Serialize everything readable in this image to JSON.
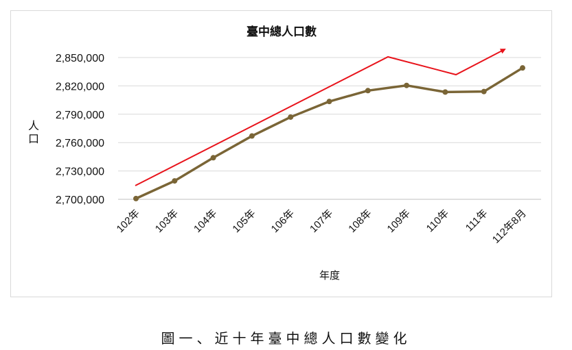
{
  "chart_data": {
    "type": "line",
    "title": "臺中總人口數",
    "xlabel": "年度",
    "ylabel": "人口",
    "categories": [
      "102年",
      "103年",
      "104年",
      "105年",
      "106年",
      "107年",
      "108年",
      "109年",
      "110年",
      "111年",
      "112年8月"
    ],
    "series": [
      {
        "name": "臺中總人口數",
        "color": "#7a6536",
        "values": [
          2700800,
          2719500,
          2744000,
          2767000,
          2787000,
          2803500,
          2815000,
          2820500,
          2813500,
          2814000,
          2839000
        ]
      }
    ],
    "yticks": [
      "2,700,000",
      "2,730,000",
      "2,760,000",
      "2,790,000",
      "2,820,000",
      "2,850,000"
    ],
    "ylim": [
      2700000,
      2850000
    ],
    "grid": true,
    "legend": "none",
    "annotations": [
      {
        "type": "trend-arrow",
        "color": "#e8131b",
        "description": "red trend arrow rising to 108年, dipping around 110年, then rising again"
      }
    ]
  },
  "caption": "圖一、近十年臺中總人口數變化"
}
